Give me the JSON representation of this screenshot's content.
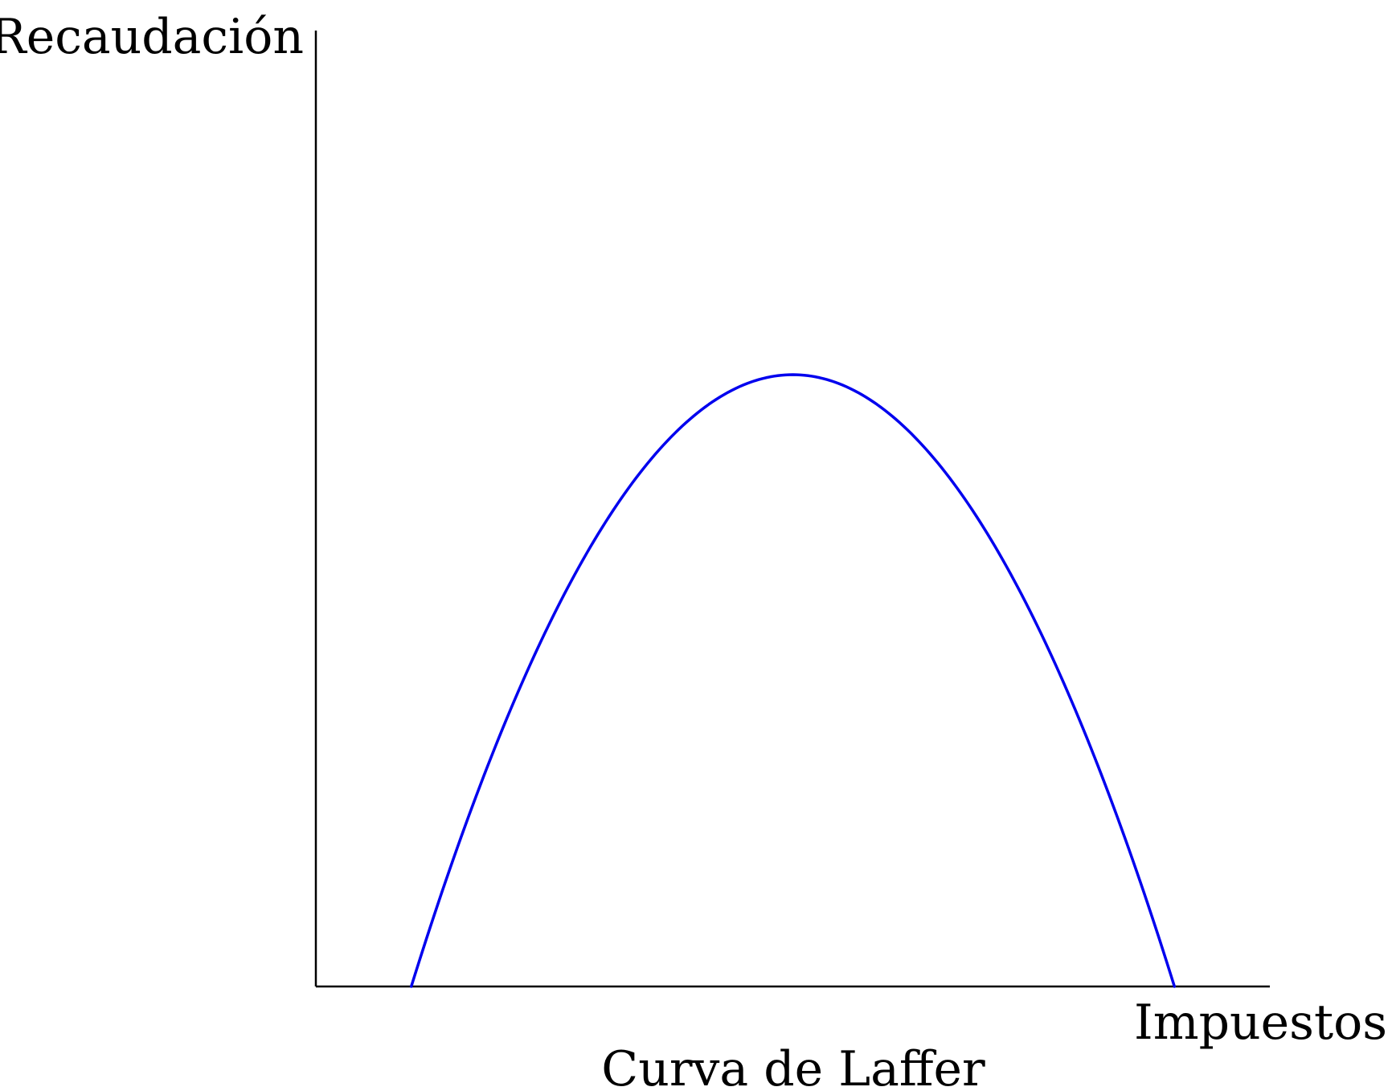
{
  "chart_data": {
    "type": "line",
    "title": "Curva de Laffer",
    "xlabel": "Impuestos",
    "ylabel": "Recaudación",
    "grid": false,
    "legend": "none",
    "x": [
      0.1,
      0.2,
      0.3,
      0.4,
      0.5,
      0.6,
      0.7,
      0.8,
      0.9
    ],
    "series": [
      {
        "values": [
          0,
          0.35,
          0.6,
          0.75,
          0.8,
          0.75,
          0.6,
          0.35,
          0
        ],
        "color": "#0000ee"
      }
    ],
    "xlim": [
      0,
      1
    ],
    "ylim": [
      0,
      1.25
    ],
    "axis_color": "#000000"
  }
}
